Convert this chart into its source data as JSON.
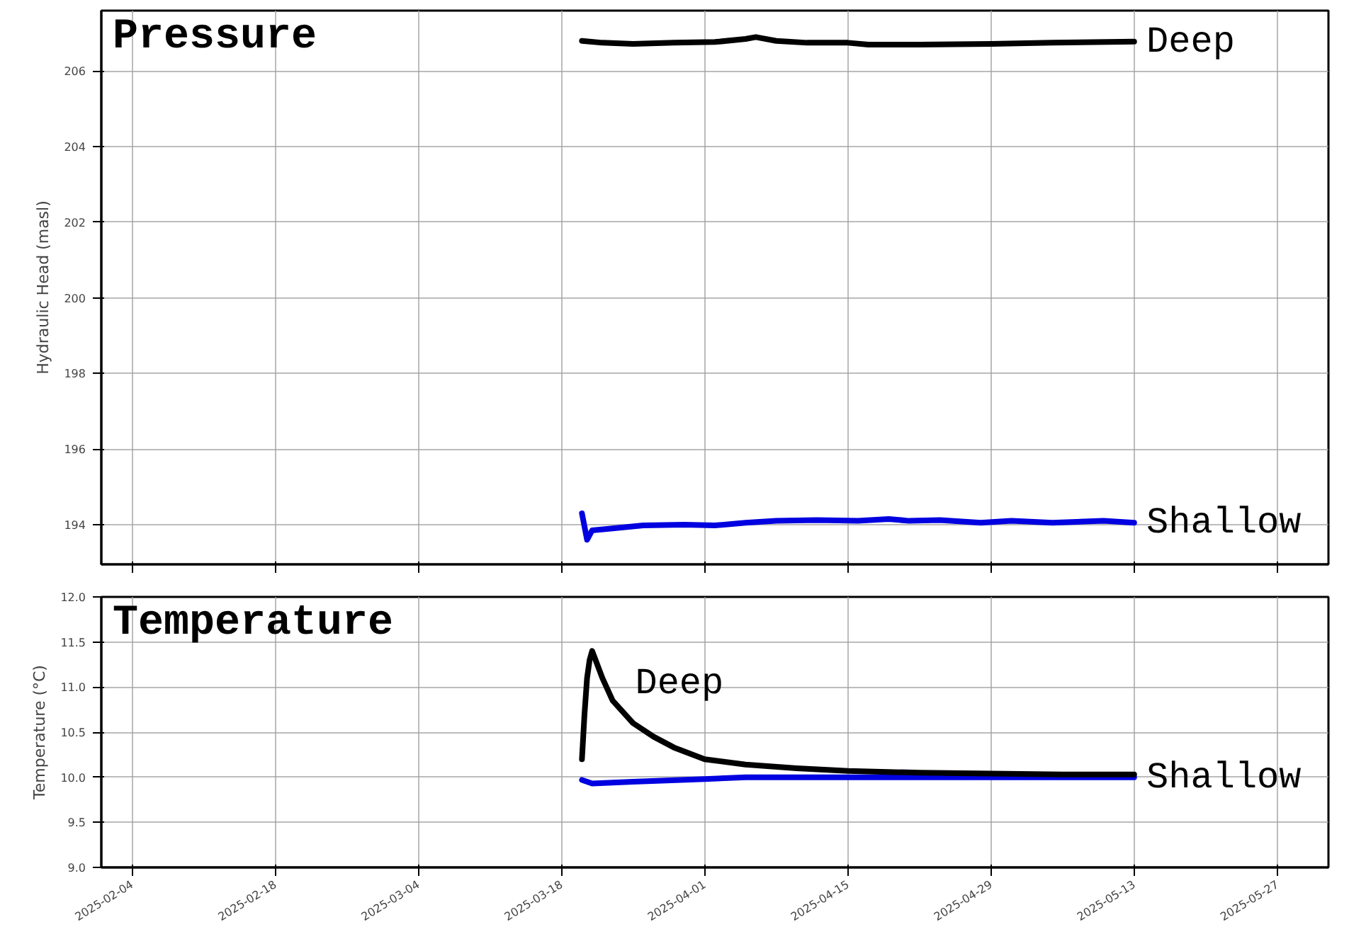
{
  "chart_data": [
    {
      "type": "line",
      "title": "Pressure",
      "ylabel": "Hydraulic Head (masl)",
      "xlim": [
        "2025-02-01",
        "2025-06-01"
      ],
      "xticks": [
        "2025-02-04",
        "2025-02-18",
        "2025-03-04",
        "2025-03-18",
        "2025-04-01",
        "2025-04-15",
        "2025-04-29",
        "2025-05-13",
        "2025-05-27"
      ],
      "ylim": [
        192.95,
        207.6
      ],
      "yticks": [
        194,
        196,
        198,
        200,
        202,
        204,
        206
      ],
      "grid": true,
      "tick_labels": "y",
      "series": [
        {
          "name": "Deep",
          "color": "#000000",
          "x": [
            "2025-03-20",
            "2025-03-22",
            "2025-03-25",
            "2025-03-29",
            "2025-04-02",
            "2025-04-05",
            "2025-04-06",
            "2025-04-08",
            "2025-04-11",
            "2025-04-15",
            "2025-04-17",
            "2025-04-22",
            "2025-04-29",
            "2025-05-05",
            "2025-05-13"
          ],
          "values": [
            206.8,
            206.75,
            206.72,
            206.75,
            206.77,
            206.85,
            206.9,
            206.8,
            206.75,
            206.75,
            206.7,
            206.7,
            206.72,
            206.75,
            206.78
          ]
        },
        {
          "name": "Shallow",
          "color": "#0000e0",
          "x": [
            "2025-03-20",
            "2025-03-20T12:00",
            "2025-03-21",
            "2025-03-23",
            "2025-03-26",
            "2025-03-30",
            "2025-04-02",
            "2025-04-05",
            "2025-04-08",
            "2025-04-12",
            "2025-04-16",
            "2025-04-19",
            "2025-04-21",
            "2025-04-24",
            "2025-04-28",
            "2025-05-01",
            "2025-05-05",
            "2025-05-10",
            "2025-05-13"
          ],
          "values": [
            194.3,
            193.6,
            193.85,
            193.9,
            193.98,
            194.0,
            193.98,
            194.05,
            194.1,
            194.12,
            194.1,
            194.15,
            194.1,
            194.12,
            194.05,
            194.1,
            194.05,
            194.1,
            194.05
          ]
        }
      ]
    },
    {
      "type": "line",
      "title": "Temperature",
      "ylabel": "Temperature (°C)",
      "xlim": [
        "2025-02-01",
        "2025-06-01"
      ],
      "xticks": [
        "2025-02-04",
        "2025-02-18",
        "2025-03-04",
        "2025-03-18",
        "2025-04-01",
        "2025-04-15",
        "2025-04-29",
        "2025-05-13",
        "2025-05-27"
      ],
      "ylim": [
        9,
        12
      ],
      "yticks": [
        {
          "value": 9,
          "label": "9.0"
        },
        {
          "value": 9.5,
          "label": "9.5"
        },
        {
          "value": 10,
          "label": "10.0"
        },
        {
          "value": 10.5,
          "label": "10.5"
        },
        {
          "value": 11,
          "label": "11.0"
        },
        {
          "value": 11.5,
          "label": "11.5"
        },
        {
          "value": 12,
          "label": "12.0"
        }
      ],
      "grid": true,
      "series": [
        {
          "name": "Deep",
          "color": "#000000",
          "x": [
            "2025-03-20",
            "2025-03-20T06:00",
            "2025-03-20T12:00",
            "2025-03-20T18:00",
            "2025-03-21",
            "2025-03-22",
            "2025-03-23",
            "2025-03-25",
            "2025-03-27",
            "2025-03-29",
            "2025-04-01",
            "2025-04-05",
            "2025-04-10",
            "2025-04-15",
            "2025-04-22",
            "2025-04-29",
            "2025-05-06",
            "2025-05-13"
          ],
          "values": [
            10.2,
            10.7,
            11.1,
            11.3,
            11.4,
            11.1,
            10.85,
            10.6,
            10.45,
            10.33,
            10.2,
            10.14,
            10.1,
            10.07,
            10.05,
            10.04,
            10.03,
            10.03
          ]
        },
        {
          "name": "Shallow",
          "color": "#0000e0",
          "x": [
            "2025-03-20",
            "2025-03-21",
            "2025-03-25",
            "2025-04-01",
            "2025-04-05",
            "2025-04-15",
            "2025-05-13"
          ],
          "values": [
            9.97,
            9.93,
            9.95,
            9.98,
            10.0,
            10.0,
            10.0
          ]
        }
      ]
    }
  ]
}
